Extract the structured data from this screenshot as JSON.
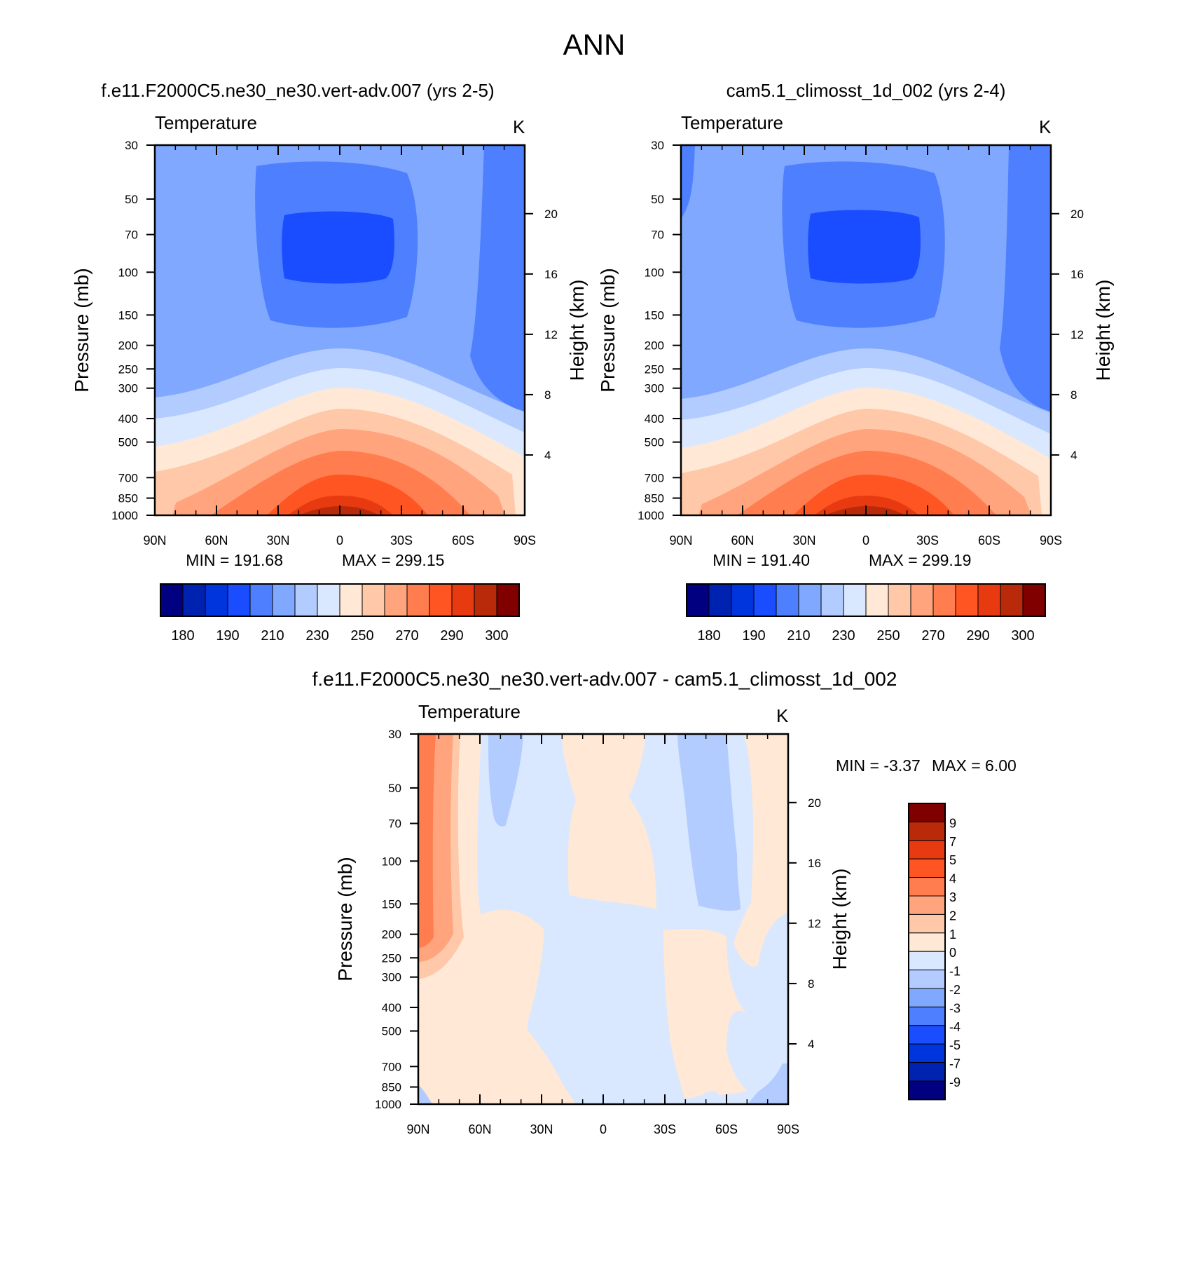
{
  "title": "ANN",
  "chart_data": [
    {
      "type": "contour",
      "title": "f.e11.F2000C5.ne30_ne30.vert-adv.007 (yrs 2-5)",
      "variable": "Temperature",
      "units": "K",
      "xlabel": "",
      "ylabel": "Pressure (mb)",
      "y2label": "Height (km)",
      "x_ticks": [
        "90N",
        "60N",
        "30N",
        "0",
        "30S",
        "60S",
        "90S"
      ],
      "x_values": [
        90,
        60,
        30,
        0,
        -30,
        -60,
        -90
      ],
      "y_ticks": [
        30,
        50,
        70,
        100,
        150,
        200,
        250,
        300,
        400,
        500,
        700,
        850,
        1000
      ],
      "y2_ticks": [
        4,
        8,
        12,
        16,
        20
      ],
      "ylim": [
        30,
        1000
      ],
      "min": 191.68,
      "max": 299.15,
      "min_label": "MIN = 191.68",
      "max_label": "MAX = 299.15",
      "colorbar_levels": [
        180,
        185,
        190,
        200,
        210,
        220,
        230,
        240,
        250,
        260,
        270,
        280,
        290,
        295,
        300
      ],
      "colorbar_labels": [
        "180",
        "190",
        "210",
        "230",
        "250",
        "270",
        "290",
        "300"
      ]
    },
    {
      "type": "contour",
      "title": "cam5.1_climosst_1d_002 (yrs 2-4)",
      "variable": "Temperature",
      "units": "K",
      "xlabel": "",
      "ylabel": "Pressure (mb)",
      "y2label": "Height (km)",
      "x_ticks": [
        "90N",
        "60N",
        "30N",
        "0",
        "30S",
        "60S",
        "90S"
      ],
      "x_values": [
        90,
        60,
        30,
        0,
        -30,
        -60,
        -90
      ],
      "y_ticks": [
        30,
        50,
        70,
        100,
        150,
        200,
        250,
        300,
        400,
        500,
        700,
        850,
        1000
      ],
      "y2_ticks": [
        4,
        8,
        12,
        16,
        20
      ],
      "ylim": [
        30,
        1000
      ],
      "min": 191.4,
      "max": 299.19,
      "min_label": "MIN = 191.40",
      "max_label": "MAX = 299.19",
      "colorbar_levels": [
        180,
        185,
        190,
        200,
        210,
        220,
        230,
        240,
        250,
        260,
        270,
        280,
        290,
        295,
        300
      ],
      "colorbar_labels": [
        "180",
        "190",
        "210",
        "230",
        "250",
        "270",
        "290",
        "300"
      ]
    },
    {
      "type": "contour",
      "title": "f.e11.F2000C5.ne30_ne30.vert-adv.007 - cam5.1_climosst_1d_002",
      "variable": "Temperature",
      "units": "K",
      "xlabel": "",
      "ylabel": "Pressure (mb)",
      "y2label": "Height (km)",
      "x_ticks": [
        "90N",
        "60N",
        "30N",
        "0",
        "30S",
        "60S",
        "90S"
      ],
      "x_values": [
        90,
        60,
        30,
        0,
        -30,
        -60,
        -90
      ],
      "y_ticks": [
        30,
        50,
        70,
        100,
        150,
        200,
        250,
        300,
        400,
        500,
        700,
        850,
        1000
      ],
      "y2_ticks": [
        4,
        8,
        12,
        16,
        20
      ],
      "ylim": [
        30,
        1000
      ],
      "min": -3.37,
      "max": 6.0,
      "min_label": "MIN =  -3.37",
      "max_label": "MAX =   6.00",
      "colorbar_levels": [
        -9,
        -7,
        -5,
        -4,
        -3,
        -2,
        -1,
        0,
        1,
        2,
        3,
        4,
        5,
        7,
        9
      ],
      "colorbar_labels": [
        "9",
        "7",
        "5",
        "4",
        "3",
        "2",
        "1",
        "0",
        "-1",
        "-2",
        "-3",
        "-4",
        "-5",
        "-7",
        "-9"
      ]
    }
  ],
  "palette": [
    "#000080",
    "#0022b0",
    "#0035dd",
    "#1a4dff",
    "#4d7fff",
    "#80a8ff",
    "#b3ccff",
    "#d9e8ff",
    "#ffe8d6",
    "#ffc8a8",
    "#ffa47c",
    "#ff7d4f",
    "#ff5522",
    "#e83a10",
    "#b82a0a",
    "#800000"
  ]
}
